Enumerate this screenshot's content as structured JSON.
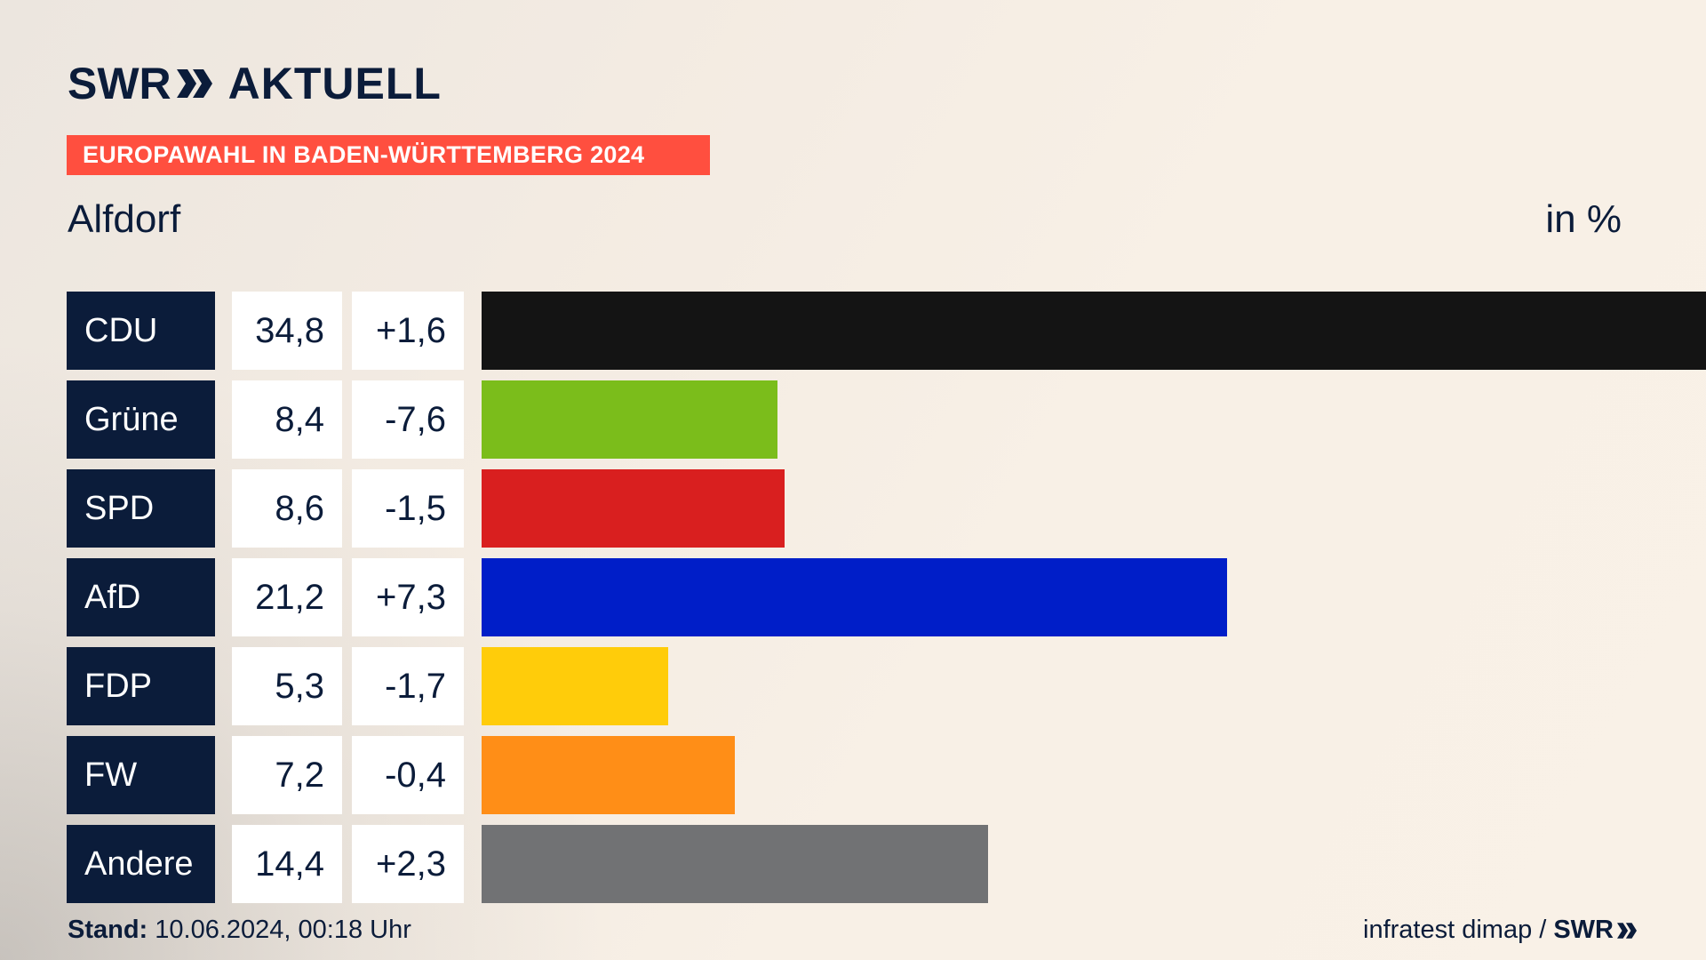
{
  "brand": {
    "logo_text": "SWR",
    "product": "AKTUELL"
  },
  "banner": "EUROPAWAHL IN BADEN-WÜRTTEMBERG 2024",
  "place": "Alfdorf",
  "unit_label": "in %",
  "footer": {
    "stand_label": "Stand:",
    "stand_value": "10.06.2024, 00:18 Uhr",
    "source": "infratest dimap /",
    "source_brand": "SWR"
  },
  "chart_data": {
    "type": "bar",
    "orientation": "horizontal",
    "categories": [
      "CDU",
      "Grüne",
      "SPD",
      "AfD",
      "FDP",
      "FW",
      "Andere"
    ],
    "values": [
      34.8,
      8.4,
      8.6,
      21.2,
      5.3,
      7.2,
      14.4
    ],
    "value_labels": [
      "34,8",
      "8,4",
      "8,6",
      "21,2",
      "5,3",
      "7,2",
      "14,4"
    ],
    "change_labels": [
      "+1,6",
      "-7,6",
      "-1,5",
      "+7,3",
      "-1,7",
      "-0,4",
      "+2,3"
    ],
    "colors": [
      "#141414",
      "#7bbd1b",
      "#d91f1f",
      "#001ec8",
      "#ffcc0a",
      "#ff8e17",
      "#717274"
    ],
    "xlim": [
      0,
      34.8
    ]
  }
}
